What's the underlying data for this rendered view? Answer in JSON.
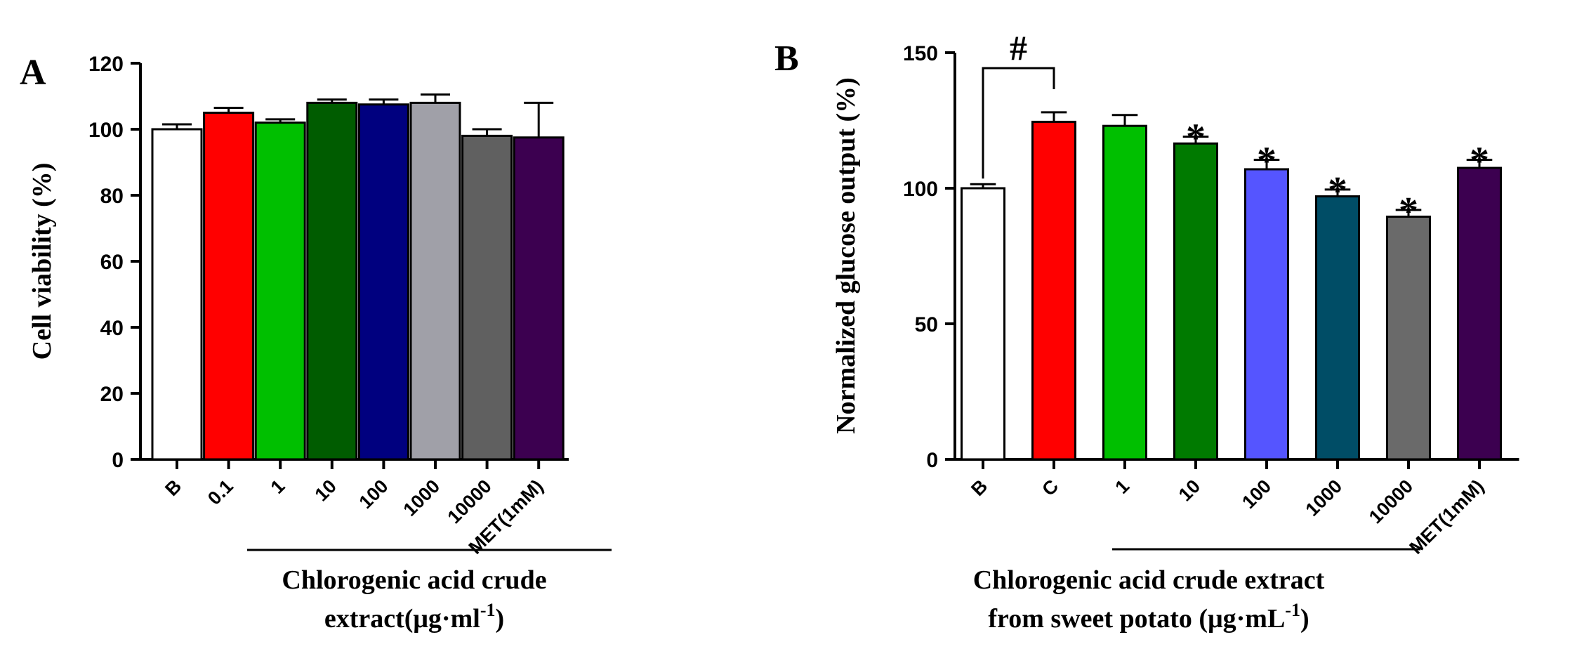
{
  "chart_data": [
    {
      "type": "bar",
      "panel_label": "A",
      "ylabel": "Cell viability (%)",
      "xlabel_lines": [
        "Chlorogenic acid crude",
        "extract(μg·ml"
      ],
      "xlabel_sup": "-1",
      "xlabel_tail": ")",
      "ylim": [
        0,
        120
      ],
      "yticks": [
        0,
        20,
        40,
        60,
        80,
        100,
        120
      ],
      "categories": [
        "B",
        "0.1",
        "1",
        "10",
        "100",
        "1000",
        "10000",
        "MET(1mM)"
      ],
      "values": [
        100,
        105,
        102,
        108,
        107.5,
        108,
        98,
        97.5
      ],
      "errors": [
        1.5,
        1.5,
        1.0,
        1.0,
        1.5,
        2.5,
        2.0,
        10.5
      ],
      "colors": [
        "#ffffff",
        "#ff0000",
        "#00bf00",
        "#005c00",
        "#00007f",
        "#a0a0a8",
        "#606060",
        "#3c0050"
      ]
    },
    {
      "type": "bar",
      "panel_label": "B",
      "ylabel": "Normalized glucose output (%)",
      "xlabel_lines": [
        "Chlorogenic acid crude extract",
        "from sweet potato (μg·mL"
      ],
      "xlabel_sup": "-1",
      "xlabel_tail": ")",
      "ylim": [
        0,
        150
      ],
      "yticks": [
        0,
        50,
        100,
        150
      ],
      "categories": [
        "B",
        "C",
        "1",
        "10",
        "100",
        "1000",
        "10000",
        "MET(1mM)"
      ],
      "values": [
        100,
        124.5,
        123,
        116.5,
        107,
        97,
        89.5,
        107.5
      ],
      "errors": [
        1.5,
        3.5,
        4.0,
        2.5,
        3.5,
        2.5,
        2.5,
        3.0
      ],
      "colors": [
        "#ffffff",
        "#ff0000",
        "#00bf00",
        "#007a00",
        "#5555ff",
        "#004d66",
        "#6a6a6a",
        "#3c0050"
      ],
      "significance_marks": [
        "",
        "",
        "",
        "*",
        "*",
        "*",
        "*",
        "*"
      ],
      "bracket_label": "#"
    }
  ]
}
